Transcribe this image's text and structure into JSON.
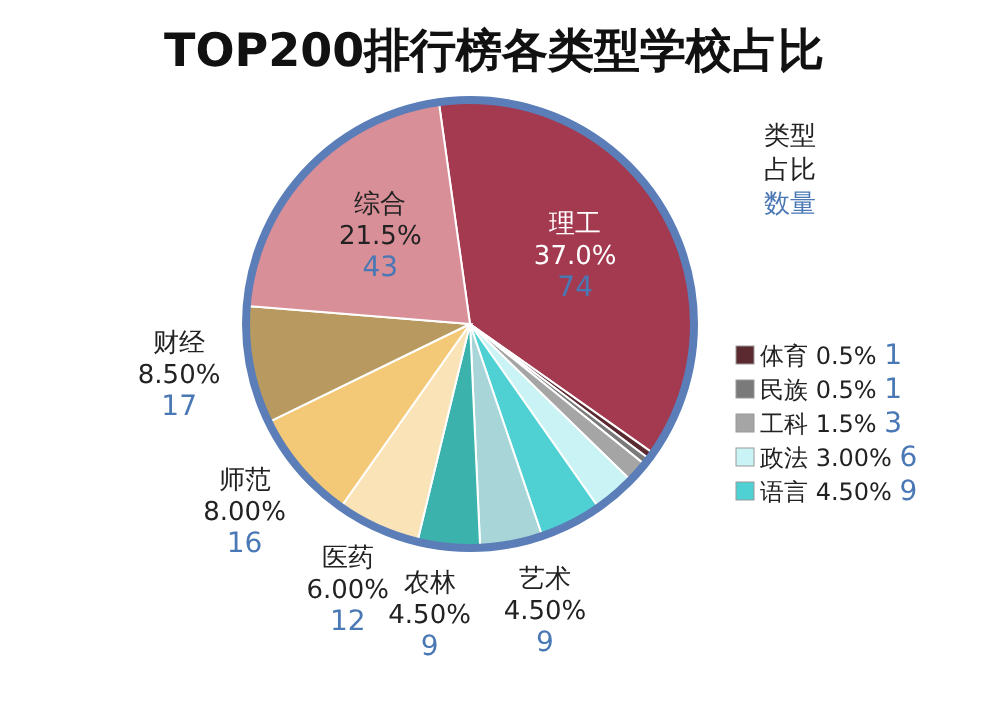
{
  "chart_data": {
    "type": "pie",
    "title": "TOP200排行榜各类型学校占比",
    "categories": [
      "理工",
      "体育",
      "民族",
      "工科",
      "政法",
      "语言",
      "艺术",
      "农林",
      "医药",
      "师范",
      "财经",
      "综合"
    ],
    "values": [
      37.0,
      0.5,
      0.5,
      1.5,
      3.0,
      4.5,
      4.5,
      4.5,
      6.0,
      8.0,
      8.5,
      21.5
    ],
    "value_labels": [
      "37.0%",
      "0.5%",
      "0.5%",
      "1.5%",
      "3.00%",
      "4.50%",
      "4.50%",
      "4.50%",
      "6.00%",
      "8.00%",
      "8.50%",
      "21.5%"
    ],
    "colors": [
      "#a33a4f",
      "#5a2a30",
      "#7a7a7a",
      "#a5a5a5",
      "#c9f3f4",
      "#4fd1d4",
      "#a8d6d8",
      "#3bb3ac",
      "#fbe3b8",
      "#f3c877",
      "#b89a60",
      "#d98f98"
    ],
    "legend_title": "类型占比数量",
    "legend": "right",
    "annotations": [
      "74",
      "1",
      "1",
      "3",
      "6",
      "9",
      "9",
      "9",
      "12",
      "16",
      "17",
      "43"
    ]
  }
}
